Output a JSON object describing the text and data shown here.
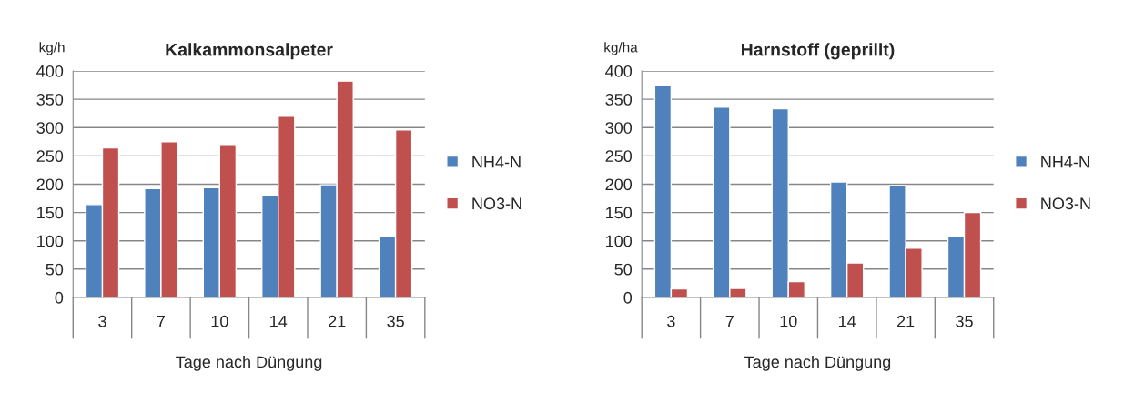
{
  "chart_data": [
    {
      "type": "bar",
      "title": "Kalkammonsalpeter",
      "ylabel": "kg/h",
      "xlabel": "Tage nach Düngung",
      "categories": [
        "3",
        "7",
        "10",
        "14",
        "21",
        "35"
      ],
      "ylim": [
        0,
        400
      ],
      "yticks": [
        0,
        50,
        100,
        150,
        200,
        250,
        300,
        350,
        400
      ],
      "grid": "y",
      "legend": "right",
      "series": [
        {
          "name": "NH4-N",
          "color": "#4f81bd",
          "values": [
            164,
            192,
            194,
            180,
            199,
            108
          ]
        },
        {
          "name": "NO3-N",
          "color": "#c0504d",
          "values": [
            264,
            275,
            270,
            320,
            382,
            296
          ]
        }
      ]
    },
    {
      "type": "bar",
      "title": "Harnstoff (geprillt)",
      "ylabel": "kg/ha",
      "xlabel": "Tage nach Düngung",
      "categories": [
        "3",
        "7",
        "10",
        "14",
        "21",
        "35"
      ],
      "ylim": [
        0,
        400
      ],
      "yticks": [
        0,
        50,
        100,
        150,
        200,
        250,
        300,
        350,
        400
      ],
      "grid": "y",
      "legend": "right",
      "series": [
        {
          "name": "NH4-N",
          "color": "#4f81bd",
          "values": [
            375,
            336,
            333,
            204,
            197,
            107
          ]
        },
        {
          "name": "NO3-N",
          "color": "#c0504d",
          "values": [
            15,
            16,
            28,
            61,
            87,
            150
          ]
        }
      ]
    }
  ]
}
